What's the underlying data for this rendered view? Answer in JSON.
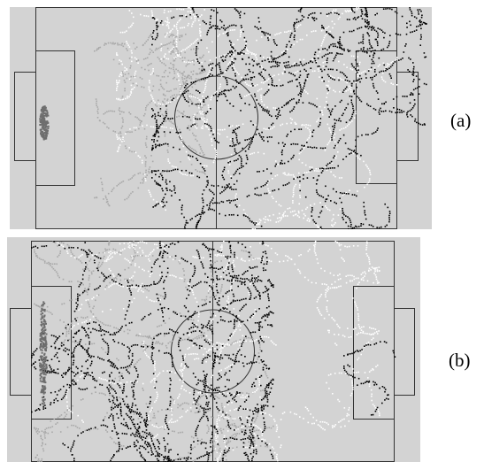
{
  "figure": {
    "panels": [
      {
        "id": "a",
        "label": "(a)",
        "background": "#d3d3d3",
        "attack_direction": "right"
      },
      {
        "id": "b",
        "label": "(b)",
        "background": "#d3d3d3",
        "attack_direction": "left"
      }
    ],
    "colors": {
      "line": "#333333",
      "team_black": "#000000",
      "team_white": "#ffffff",
      "team_gray": "#a9a9a9",
      "goalkeeper": "#6e6e6e"
    }
  }
}
